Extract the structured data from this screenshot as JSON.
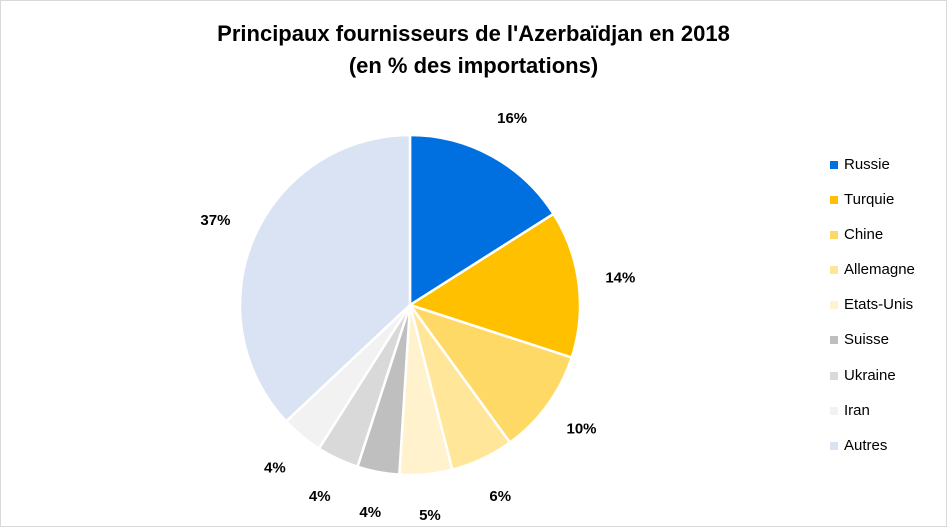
{
  "chart_data": {
    "type": "pie",
    "title_lines": [
      "Principaux fournisseurs de l'Azerbaïdjan en 2018",
      "(en % des importations)"
    ],
    "slices": [
      {
        "name": "Russie",
        "value": 16,
        "label": "16%",
        "color": "#0070e0"
      },
      {
        "name": "Turquie",
        "value": 14,
        "label": "14%",
        "color": "#ffc000"
      },
      {
        "name": "Chine",
        "value": 10,
        "label": "10%",
        "color": "#ffd966"
      },
      {
        "name": "Allemagne",
        "value": 6,
        "label": "6%",
        "color": "#ffe699"
      },
      {
        "name": "Etats-Unis",
        "value": 5,
        "label": "5%",
        "color": "#fff2cc"
      },
      {
        "name": "Suisse",
        "value": 4,
        "label": "4%",
        "color": "#bfbfbf"
      },
      {
        "name": "Ukraine",
        "value": 4,
        "label": "4%",
        "color": "#d9d9d9"
      },
      {
        "name": "Iran",
        "value": 4,
        "label": "4%",
        "color": "#f2f2f2"
      },
      {
        "name": "Autres",
        "value": 37,
        "label": "37%",
        "color": "#dae3f3"
      }
    ],
    "legend_position": "right"
  }
}
